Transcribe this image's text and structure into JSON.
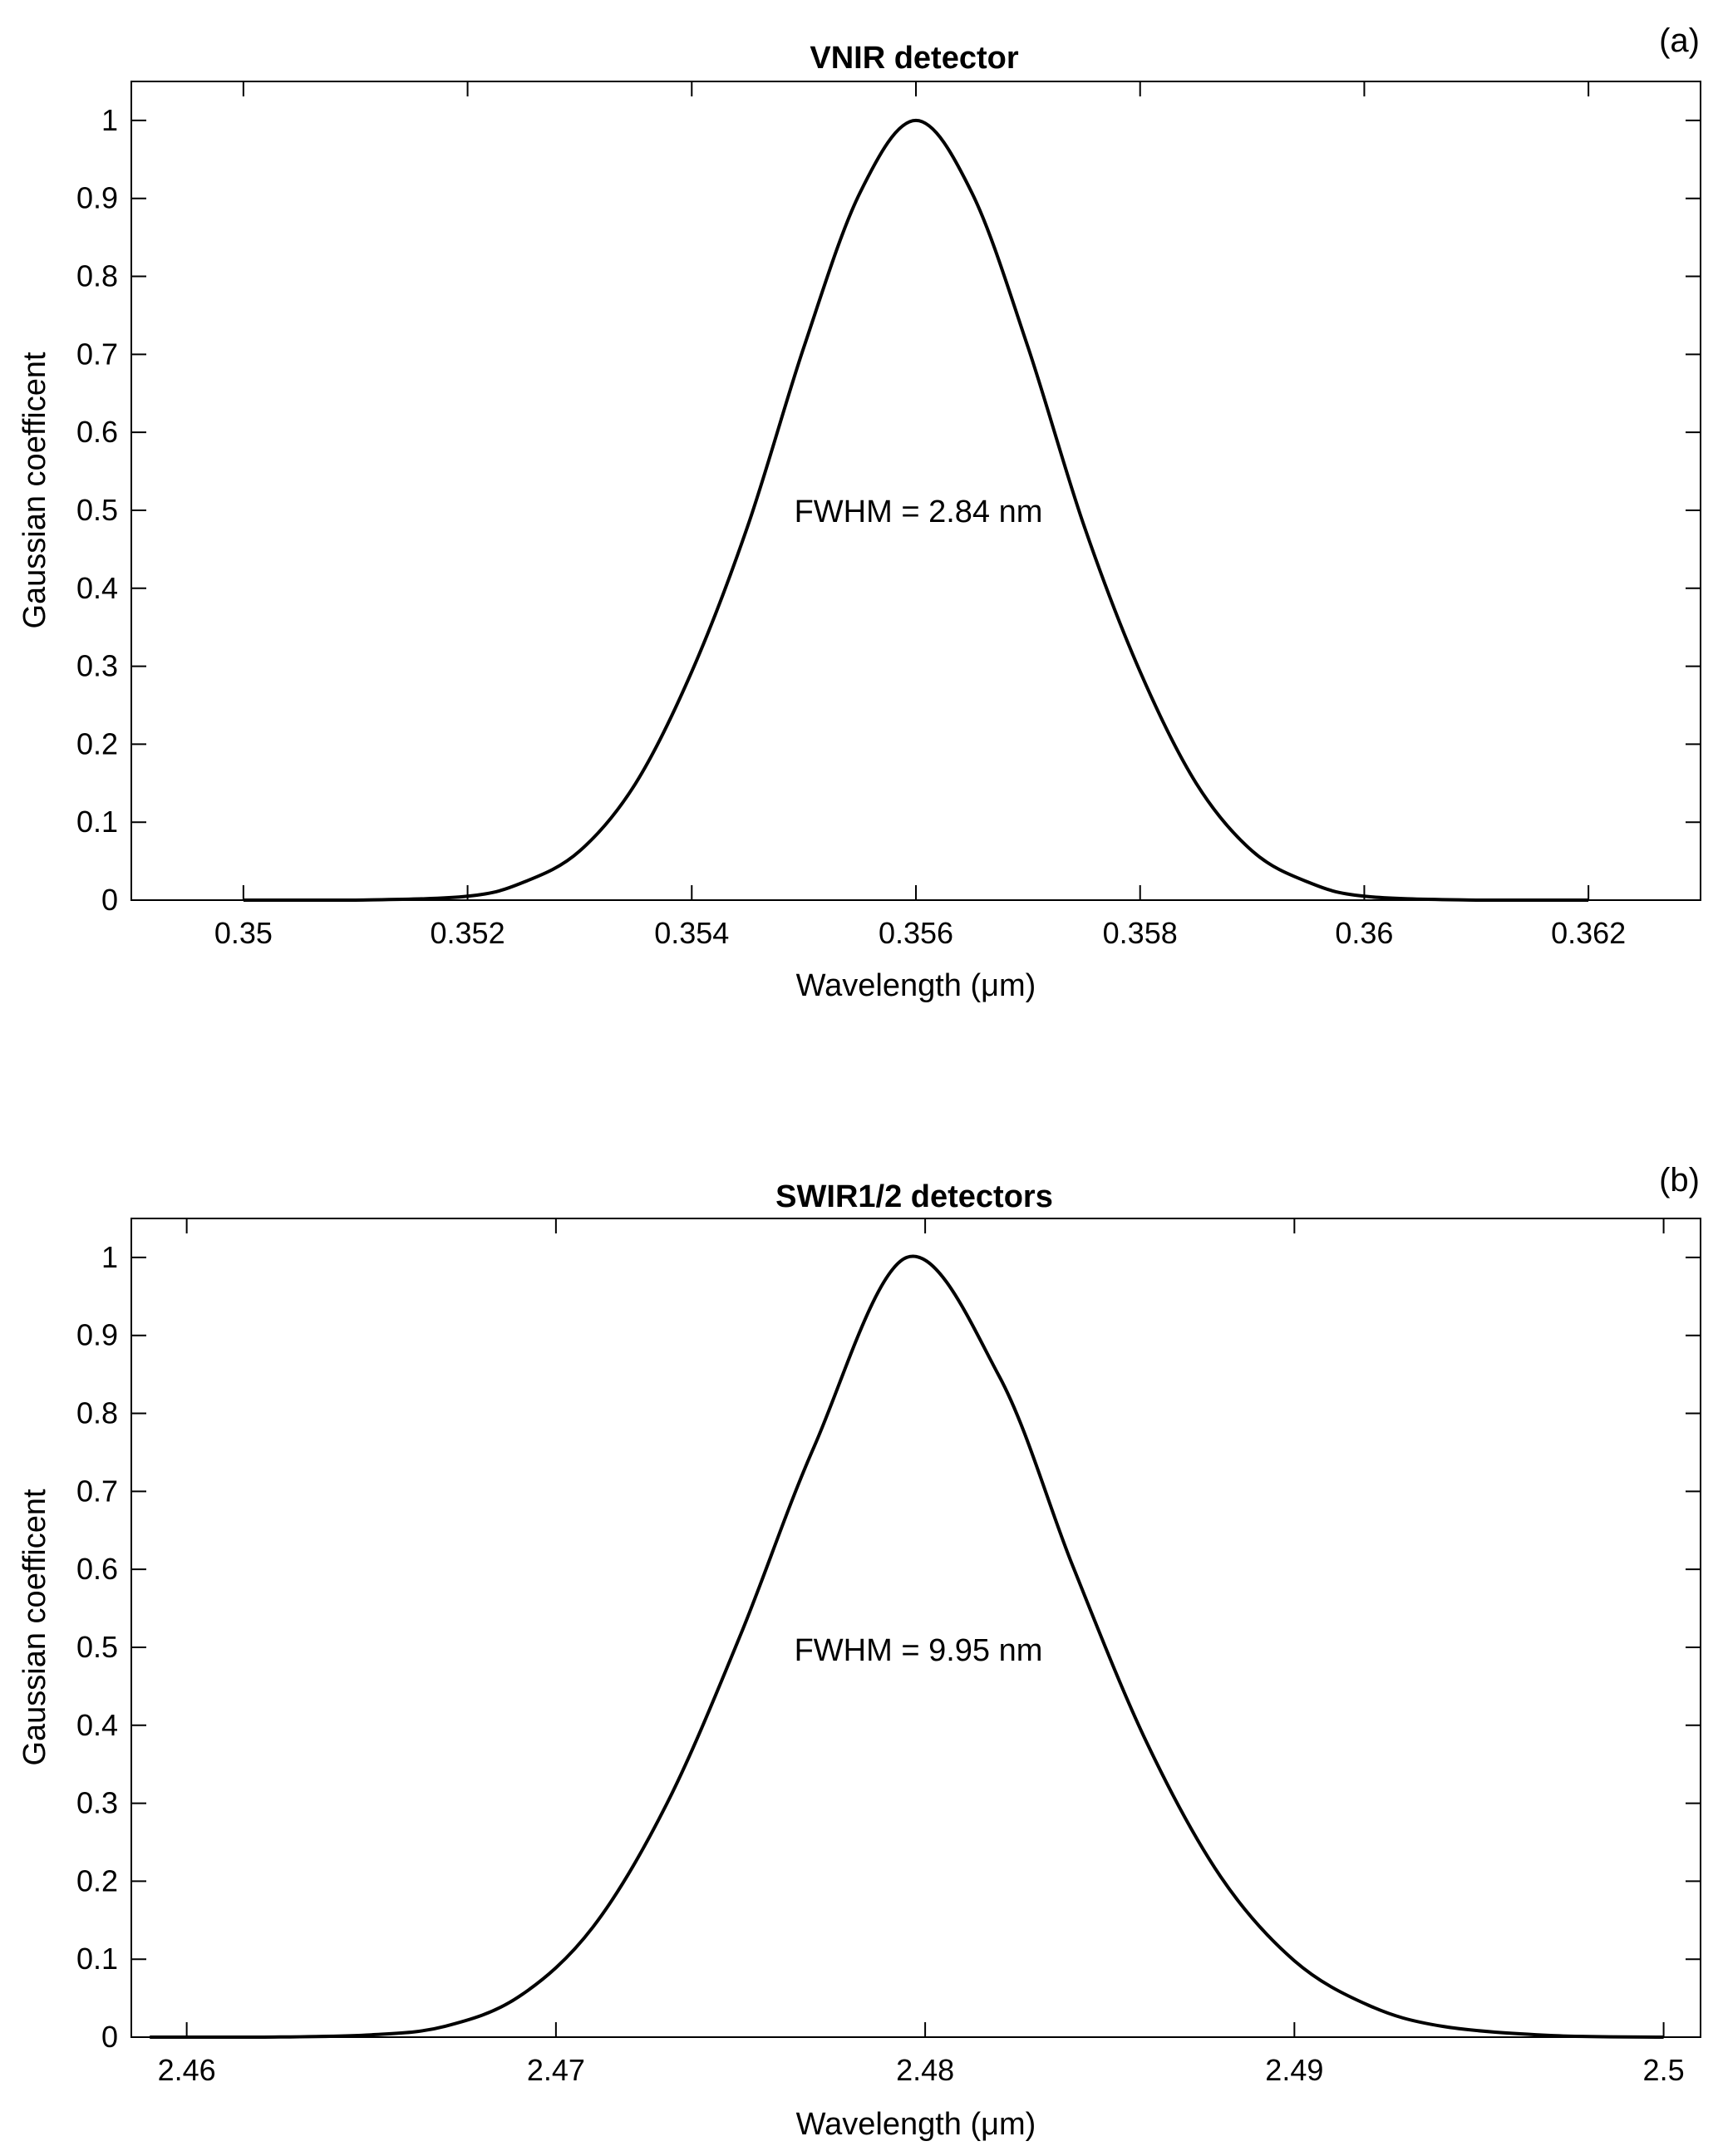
{
  "chart_data": [
    {
      "type": "line",
      "panel_label": "(a)",
      "title": "VNIR detector",
      "xlabel": "Wavelength (μm)",
      "ylabel": "Gaussian  coefficent",
      "annotation": "FWHM = 2.84 nm",
      "xlim": [
        0.349,
        0.363
      ],
      "ylim": [
        0,
        1.05
      ],
      "xticks": [
        "0.35",
        "0.352",
        "0.354",
        "0.356",
        "0.358",
        "0.36",
        "0.362"
      ],
      "yticks": [
        "0",
        "0.1",
        "0.2",
        "0.3",
        "0.4",
        "0.5",
        "0.6",
        "0.7",
        "0.8",
        "0.9",
        "1"
      ],
      "grid": false,
      "line_color": "#000000",
      "x": [
        0.35,
        0.351,
        0.352,
        0.3525,
        0.353,
        0.3535,
        0.354,
        0.3545,
        0.355,
        0.3555,
        0.356,
        0.3565,
        0.357,
        0.3575,
        0.358,
        0.3585,
        0.359,
        0.3595,
        0.36,
        0.361,
        0.362
      ],
      "y": [
        0.0,
        0.0,
        0.005,
        0.023,
        0.063,
        0.15,
        0.293,
        0.48,
        0.709,
        0.907,
        1.0,
        0.907,
        0.709,
        0.48,
        0.293,
        0.15,
        0.063,
        0.023,
        0.005,
        0.0,
        0.0
      ]
    },
    {
      "type": "line",
      "panel_label": "(b)",
      "title": "SWIR1/2  detectors",
      "xlabel": "Wavelength (μm)",
      "ylabel": "Gaussian  coefficent",
      "annotation": "FWHM = 9.95 nm",
      "xlim": [
        2.4585,
        2.501
      ],
      "ylim": [
        0,
        1.05
      ],
      "xticks": [
        "2.46",
        "2.47",
        "2.48",
        "2.49",
        "2.5"
      ],
      "yticks": [
        "0",
        "0.1",
        "0.2",
        "0.3",
        "0.4",
        "0.5",
        "0.6",
        "0.7",
        "0.8",
        "0.9",
        "1"
      ],
      "grid": false,
      "line_color": "#000000",
      "x": [
        2.459,
        2.462,
        2.465,
        2.467,
        2.469,
        2.471,
        2.473,
        2.475,
        2.477,
        2.4795,
        2.482,
        2.484,
        2.486,
        2.488,
        2.49,
        2.492,
        2.494,
        2.497,
        2.5
      ],
      "y": [
        0.0,
        0.0,
        0.003,
        0.014,
        0.052,
        0.141,
        0.299,
        0.516,
        0.758,
        1.0,
        0.848,
        0.604,
        0.378,
        0.206,
        0.098,
        0.041,
        0.014,
        0.002,
        0.0
      ]
    }
  ]
}
